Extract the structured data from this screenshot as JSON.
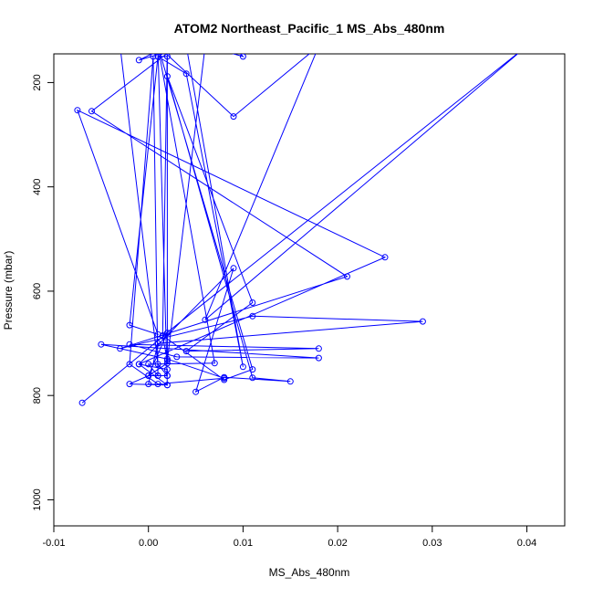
{
  "chart_data": {
    "type": "line",
    "title": "ATOM2 Northeast_Pacific_1 MS_Abs_480nm",
    "xlabel": "MS_Abs_480nm",
    "ylabel": "Pressure (mbar)",
    "xlim": [
      -0.01,
      0.044
    ],
    "ylim": [
      1050,
      145
    ],
    "y_inverted": true,
    "x_ticks": [
      -0.01,
      0.0,
      0.01,
      0.02,
      0.03,
      0.04
    ],
    "x_tick_labels": [
      "-0.01",
      "0.00",
      "0.01",
      "0.02",
      "0.03",
      "0.04"
    ],
    "y_ticks": [
      200,
      400,
      600,
      800,
      1000
    ],
    "y_tick_labels": [
      "200",
      "400",
      "600",
      "800",
      "1000"
    ],
    "grid": false,
    "colors": {
      "series": "#0000ff",
      "axis": "#000000"
    },
    "series": [
      {
        "markers": "open-circle",
        "points": [
          [
            -0.007,
            814
          ],
          [
            0.002,
            680
          ],
          [
            0.0,
            762
          ],
          [
            0.002,
            738
          ],
          [
            0.002,
            150
          ],
          [
            0.001,
            150
          ],
          [
            -0.002,
            665
          ],
          [
            0.001,
            683
          ],
          [
            -0.0075,
            253
          ],
          [
            0.025,
            535
          ],
          [
            -0.001,
            740
          ],
          [
            0.002,
            780
          ],
          [
            0.001,
            130
          ],
          [
            0.007,
            738
          ],
          [
            0.0,
            740
          ],
          [
            0.001,
            762
          ],
          [
            0.0005,
            150
          ],
          [
            -0.002,
            740
          ],
          [
            0.001,
            778
          ],
          [
            0.008,
            767
          ],
          [
            0.002,
            730
          ],
          [
            -0.005,
            702
          ],
          [
            0.018,
            728
          ],
          [
            0.003,
            726
          ],
          [
            -0.002,
            702
          ],
          [
            0.018,
            710
          ],
          [
            0.004,
            715
          ],
          [
            0.011,
            622
          ],
          [
            0.002,
            188
          ],
          [
            0.011,
            766
          ],
          [
            0.015,
            773
          ],
          [
            0.008,
            765
          ],
          [
            0.005,
            793
          ],
          [
            0.009,
            556
          ],
          [
            -0.001,
            740
          ],
          [
            0.002,
            750
          ],
          [
            0.002,
            762
          ],
          [
            0.001,
            762
          ],
          [
            0.0,
            762
          ],
          [
            -0.002,
            778
          ],
          [
            0.002,
            780
          ],
          [
            0.0,
            778
          ],
          [
            0.001,
            700
          ],
          [
            0.029,
            658
          ],
          [
            0.011,
            648
          ],
          [
            -0.003,
            710
          ],
          [
            0.021,
            572
          ],
          [
            -0.006,
            255
          ],
          [
            0.003,
            130
          ],
          [
            0.001,
            150
          ],
          [
            0.004,
            183
          ],
          [
            0.01,
            745
          ],
          [
            0.004,
            130
          ],
          [
            -0.001,
            157
          ],
          [
            0.002,
            130
          ],
          [
            0.0015,
            685
          ],
          [
            0.008,
            770
          ],
          [
            0.011,
            750
          ],
          [
            0.001,
            130
          ],
          [
            0.009,
            265
          ],
          [
            0.018,
            130
          ],
          [
            0.006,
            655
          ],
          [
            0.04,
            130
          ],
          [
            0.0015,
            686
          ],
          [
            0.002,
            733
          ],
          [
            0.006,
            130
          ],
          [
            0.01,
            150
          ],
          [
            0.009,
            130
          ],
          [
            -0.003,
            130
          ],
          [
            0.001,
            740
          ],
          [
            0.002,
            762
          ]
        ]
      }
    ]
  }
}
